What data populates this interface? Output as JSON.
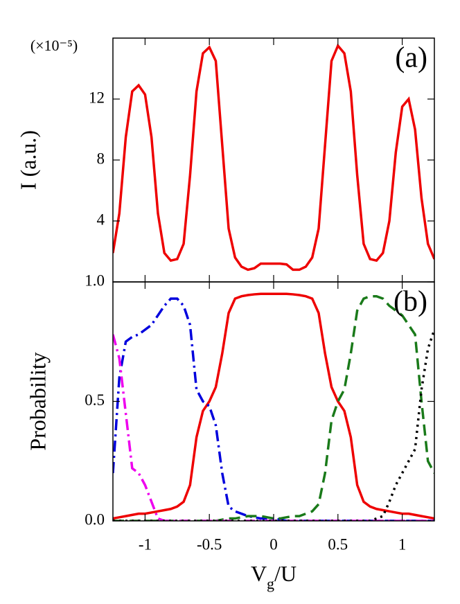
{
  "chart_data": [
    {
      "type": "line",
      "panel_label": "(a)",
      "ylabel": "I (a.u.)",
      "multiplier": "(×10⁻⁵)",
      "xlim": [
        -1.25,
        1.25
      ],
      "xticks": [
        -1,
        -0.5,
        0,
        0.5,
        1
      ],
      "ylim": [
        0,
        16
      ],
      "yticks": [
        4,
        8,
        12
      ],
      "x": [
        -1.25,
        -1.2,
        -1.15,
        -1.1,
        -1.05,
        -1,
        -0.95,
        -0.9,
        -0.85,
        -0.8,
        -0.75,
        -0.7,
        -0.65,
        -0.6,
        -0.55,
        -0.5,
        -0.45,
        -0.4,
        -0.35,
        -0.3,
        -0.25,
        -0.2,
        -0.15,
        -0.1,
        -0.05,
        0,
        0.05,
        0.1,
        0.15,
        0.2,
        0.25,
        0.3,
        0.35,
        0.4,
        0.45,
        0.5,
        0.55,
        0.6,
        0.65,
        0.7,
        0.75,
        0.8,
        0.85,
        0.9,
        0.95,
        1,
        1.05,
        1.1,
        1.15,
        1.2,
        1.25
      ],
      "series": [
        {
          "color": "#ee0000",
          "linestyle": "solid",
          "values": [
            1.9,
            4.5,
            9.5,
            12.5,
            12.9,
            12.3,
            9.5,
            4.5,
            1.9,
            1.4,
            1.5,
            2.5,
            7,
            12.5,
            15,
            15.4,
            14.5,
            9,
            3.5,
            1.6,
            1.0,
            0.8,
            0.9,
            1.2,
            1.2,
            1.2,
            1.2,
            1.15,
            0.8,
            0.8,
            1.0,
            1.6,
            3.5,
            9,
            14.5,
            15.5,
            15,
            12.5,
            7,
            2.5,
            1.5,
            1.4,
            1.9,
            4,
            8.5,
            11.5,
            12,
            10,
            5.5,
            2.5,
            1.5
          ]
        }
      ]
    },
    {
      "type": "line",
      "panel_label": "(b)",
      "ylabel": "Probability",
      "xlabel": [
        "V",
        "g",
        "/U"
      ],
      "xlim": [
        -1.25,
        1.25
      ],
      "xticks": [
        -1,
        -0.5,
        0,
        0.5,
        1
      ],
      "ylim": [
        0,
        1
      ],
      "yticks": [
        {
          "value": 0,
          "label": "0.0"
        },
        0.5,
        {
          "value": 1,
          "label": "1.0"
        }
      ],
      "x": [
        -1.25,
        -1.2,
        -1.15,
        -1.1,
        -1.05,
        -1,
        -0.95,
        -0.9,
        -0.85,
        -0.8,
        -0.75,
        -0.7,
        -0.65,
        -0.6,
        -0.55,
        -0.5,
        -0.45,
        -0.4,
        -0.35,
        -0.3,
        -0.25,
        -0.2,
        -0.15,
        -0.1,
        -0.05,
        0,
        0.05,
        0.1,
        0.15,
        0.2,
        0.25,
        0.3,
        0.35,
        0.4,
        0.45,
        0.5,
        0.55,
        0.6,
        0.65,
        0.7,
        0.75,
        0.8,
        0.85,
        0.9,
        0.95,
        1,
        1.05,
        1.1,
        1.15,
        1.2,
        1.25
      ],
      "series": [
        {
          "color": "#ee0000",
          "linestyle": "solid",
          "values": [
            0.01,
            0.015,
            0.02,
            0.025,
            0.03,
            0.03,
            0.035,
            0.04,
            0.045,
            0.05,
            0.06,
            0.08,
            0.15,
            0.35,
            0.46,
            0.5,
            0.56,
            0.7,
            0.87,
            0.93,
            0.94,
            0.945,
            0.948,
            0.95,
            0.95,
            0.95,
            0.95,
            0.95,
            0.948,
            0.945,
            0.94,
            0.93,
            0.87,
            0.7,
            0.56,
            0.5,
            0.46,
            0.35,
            0.15,
            0.08,
            0.06,
            0.05,
            0.045,
            0.04,
            0.035,
            0.03,
            0.03,
            0.025,
            0.02,
            0.015,
            0.01
          ]
        },
        {
          "color": "#0000dd",
          "linestyle": "dashdot",
          "values": [
            0.2,
            0.6,
            0.75,
            0.77,
            0.78,
            0.8,
            0.82,
            0.86,
            0.9,
            0.93,
            0.93,
            0.9,
            0.82,
            0.55,
            0.5,
            0.48,
            0.4,
            0.2,
            0.06,
            0.04,
            0.03,
            0.02,
            0.015,
            0.01,
            0.01,
            0.01,
            0.005,
            0,
            0,
            0,
            0,
            0,
            0,
            0,
            0,
            0,
            0,
            0,
            0,
            0,
            0,
            0,
            0,
            0,
            0,
            0,
            0,
            0,
            0,
            0,
            0
          ]
        },
        {
          "color": "#1a7a1a",
          "linestyle": "dashed",
          "values": [
            0,
            0,
            0,
            0,
            0,
            0,
            0,
            0,
            0,
            0,
            0,
            0,
            0,
            0,
            0,
            0,
            0,
            0.005,
            0.01,
            0.01,
            0.015,
            0.02,
            0.02,
            0.02,
            0.015,
            0.01,
            0.01,
            0.015,
            0.02,
            0.02,
            0.03,
            0.04,
            0.07,
            0.2,
            0.42,
            0.5,
            0.55,
            0.7,
            0.88,
            0.93,
            0.94,
            0.94,
            0.93,
            0.9,
            0.88,
            0.86,
            0.82,
            0.78,
            0.5,
            0.25,
            0.2
          ]
        },
        {
          "color": "#ee00ee",
          "linestyle": "dashdot",
          "values": [
            0.78,
            0.68,
            0.45,
            0.22,
            0.2,
            0.15,
            0.08,
            0.01,
            0,
            0,
            0,
            0,
            0,
            0,
            0,
            0,
            0,
            0,
            0,
            0,
            0,
            0,
            0,
            0,
            0,
            0,
            0,
            0,
            0,
            0,
            0,
            0,
            0,
            0,
            0,
            0,
            0,
            0,
            0,
            0,
            0,
            0,
            0,
            0,
            0,
            0,
            0,
            0,
            0,
            0,
            0
          ]
        },
        {
          "color": "#000000",
          "linestyle": "dotted",
          "values": [
            0,
            0,
            0,
            0,
            0,
            0,
            0,
            0,
            0,
            0,
            0,
            0,
            0,
            0,
            0,
            0,
            0,
            0,
            0,
            0,
            0,
            0,
            0,
            0,
            0,
            0,
            0,
            0,
            0,
            0,
            0,
            0,
            0,
            0,
            0,
            0,
            0,
            0,
            0,
            0,
            0,
            0.01,
            0.02,
            0.08,
            0.15,
            0.2,
            0.25,
            0.3,
            0.55,
            0.72,
            0.8
          ]
        }
      ]
    }
  ]
}
